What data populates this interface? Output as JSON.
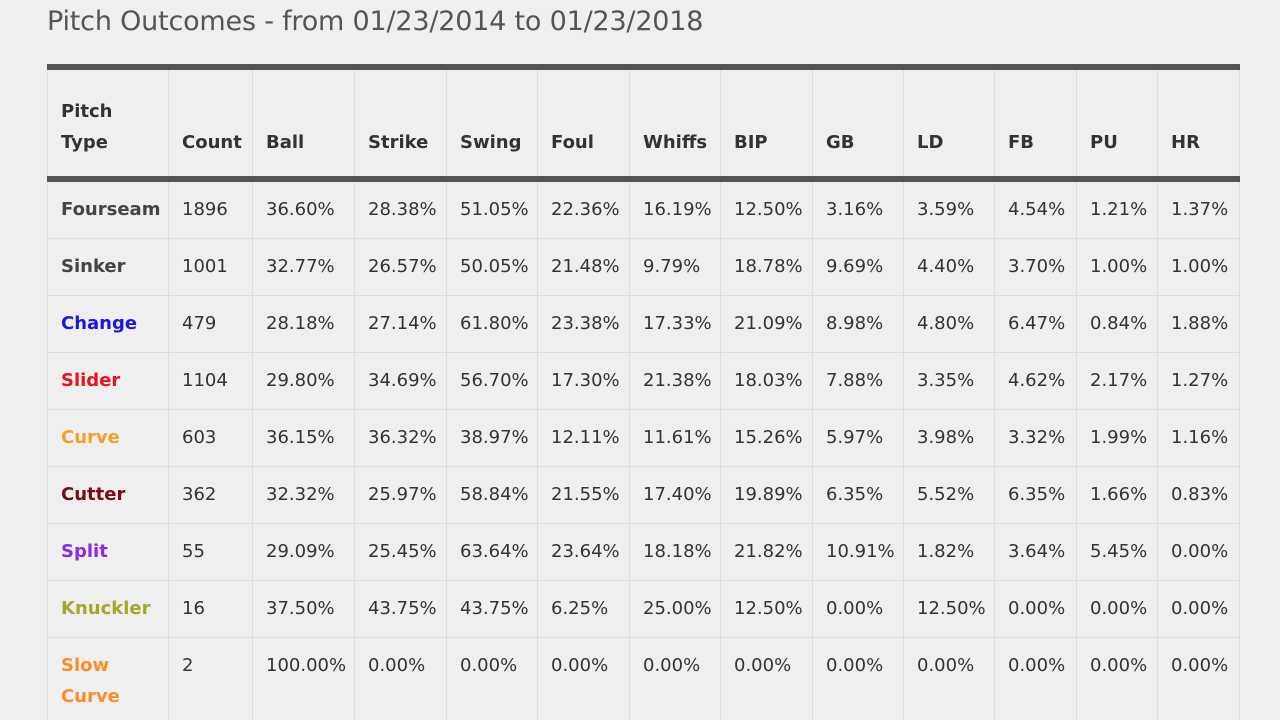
{
  "title": "Pitch Outcomes - from 01/23/2014 to 01/23/2018",
  "columns": [
    "Pitch Type",
    "Count",
    "Ball",
    "Strike",
    "Swing",
    "Foul",
    "Whiffs",
    "BIP",
    "GB",
    "LD",
    "FB",
    "PU",
    "HR"
  ],
  "rows": [
    {
      "pitch_type": "Fourseam",
      "color": "#444444",
      "values": [
        "1896",
        "36.60%",
        "28.38%",
        "51.05%",
        "22.36%",
        "16.19%",
        "12.50%",
        "3.16%",
        "3.59%",
        "4.54%",
        "1.21%",
        "1.37%"
      ]
    },
    {
      "pitch_type": "Sinker",
      "color": "#444444",
      "values": [
        "1001",
        "32.77%",
        "26.57%",
        "50.05%",
        "21.48%",
        "9.79%",
        "18.78%",
        "9.69%",
        "4.40%",
        "3.70%",
        "1.00%",
        "1.00%"
      ]
    },
    {
      "pitch_type": "Change",
      "color": "#1a1adb",
      "values": [
        "479",
        "28.18%",
        "27.14%",
        "61.80%",
        "23.38%",
        "17.33%",
        "21.09%",
        "8.98%",
        "4.80%",
        "6.47%",
        "0.84%",
        "1.88%"
      ]
    },
    {
      "pitch_type": "Slider",
      "color": "#e8141c",
      "values": [
        "1104",
        "29.80%",
        "34.69%",
        "56.70%",
        "17.30%",
        "21.38%",
        "18.03%",
        "7.88%",
        "3.35%",
        "4.62%",
        "2.17%",
        "1.27%"
      ]
    },
    {
      "pitch_type": "Curve",
      "color": "#f5a02c",
      "values": [
        "603",
        "36.15%",
        "36.32%",
        "38.97%",
        "12.11%",
        "11.61%",
        "15.26%",
        "5.97%",
        "3.98%",
        "3.32%",
        "1.99%",
        "1.16%"
      ]
    },
    {
      "pitch_type": "Cutter",
      "color": "#7a0a14",
      "values": [
        "362",
        "32.32%",
        "25.97%",
        "58.84%",
        "21.55%",
        "17.40%",
        "19.89%",
        "6.35%",
        "5.52%",
        "6.35%",
        "1.66%",
        "0.83%"
      ]
    },
    {
      "pitch_type": "Split",
      "color": "#8a2be2",
      "values": [
        "55",
        "29.09%",
        "25.45%",
        "63.64%",
        "23.64%",
        "18.18%",
        "21.82%",
        "10.91%",
        "1.82%",
        "3.64%",
        "5.45%",
        "0.00%"
      ]
    },
    {
      "pitch_type": "Knuckler",
      "color": "#a3a82a",
      "values": [
        "16",
        "37.50%",
        "43.75%",
        "43.75%",
        "6.25%",
        "25.00%",
        "12.50%",
        "0.00%",
        "12.50%",
        "0.00%",
        "0.00%",
        "0.00%"
      ]
    },
    {
      "pitch_type": "Slow Curve",
      "color": "#ff8c2a",
      "values": [
        "2",
        "100.00%",
        "0.00%",
        "0.00%",
        "0.00%",
        "0.00%",
        "0.00%",
        "0.00%",
        "0.00%",
        "0.00%",
        "0.00%",
        "0.00%"
      ]
    }
  ]
}
